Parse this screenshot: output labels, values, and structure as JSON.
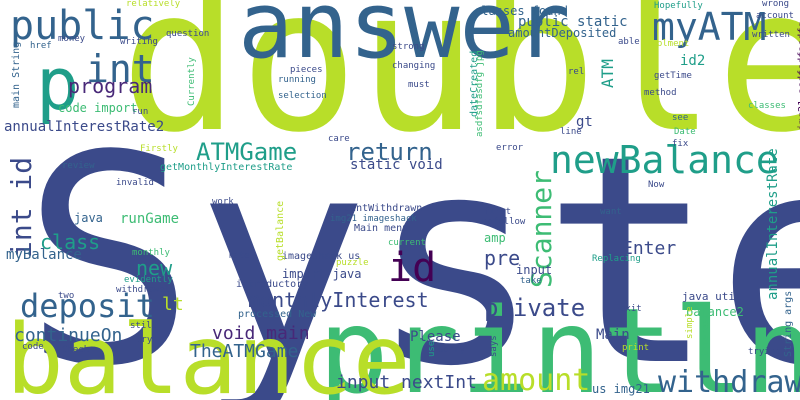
{
  "palette": {
    "navy": "#3b4a8a",
    "blue": "#33638d",
    "teal": "#1f9e89",
    "green": "#3dbc74",
    "lime": "#b8de29",
    "purple": "#482878",
    "dark": "#440154"
  },
  "words": [
    {
      "text": "System",
      "color": "navy"
    },
    {
      "text": "double",
      "color": "lime"
    },
    {
      "text": "println",
      "color": "green"
    },
    {
      "text": "balance",
      "color": "lime"
    },
    {
      "text": "answer",
      "color": "blue"
    },
    {
      "text": "p",
      "color": "teal"
    },
    {
      "text": "public",
      "color": "blue"
    },
    {
      "text": "int",
      "color": "blue"
    },
    {
      "text": "myATM",
      "color": "blue"
    },
    {
      "text": "newBalance",
      "color": "teal"
    },
    {
      "text": "id",
      "color": "dark"
    },
    {
      "text": "deposit",
      "color": "blue"
    },
    {
      "text": "withdraw",
      "color": "blue"
    },
    {
      "text": "amount",
      "color": "lime"
    },
    {
      "text": "program",
      "color": "purple"
    },
    {
      "text": "int id",
      "color": "navy"
    },
    {
      "text": "ATMGame",
      "color": "teal"
    },
    {
      "text": "return",
      "color": "blue"
    },
    {
      "text": "Scanner",
      "color": "green"
    },
    {
      "text": "monthlyInterest",
      "color": "navy"
    },
    {
      "text": "private",
      "color": "navy"
    },
    {
      "text": "class",
      "color": "teal"
    },
    {
      "text": "new",
      "color": "teal"
    },
    {
      "text": "pre",
      "color": "navy"
    },
    {
      "text": "Enter",
      "color": "navy"
    },
    {
      "text": "void main",
      "color": "purple"
    },
    {
      "text": "TheATMGame",
      "color": "blue"
    },
    {
      "text": "continueOn",
      "color": "blue"
    },
    {
      "text": "input nextInt",
      "color": "navy"
    },
    {
      "text": "annualInterestRate2",
      "color": "navy"
    },
    {
      "text": "static void",
      "color": "navy"
    },
    {
      "text": "runGame",
      "color": "green"
    },
    {
      "text": "myBalance",
      "color": "blue"
    },
    {
      "text": "lt",
      "color": "lime"
    },
    {
      "text": "public static",
      "color": "blue"
    },
    {
      "text": "classes found",
      "color": "blue"
    },
    {
      "text": "amountDeposited",
      "color": "blue"
    },
    {
      "text": "code import",
      "color": "green"
    },
    {
      "text": "getMonthlyInterestRate",
      "color": "teal"
    },
    {
      "text": "annualInterestRate",
      "color": "teal"
    },
    {
      "text": "Main",
      "color": "navy"
    },
    {
      "text": "Please",
      "color": "navy"
    },
    {
      "text": "import java",
      "color": "navy"
    },
    {
      "text": "java util",
      "color": "navy"
    },
    {
      "text": "balance2",
      "color": "green"
    },
    {
      "text": "id2",
      "color": "teal"
    },
    {
      "text": "gt",
      "color": "navy"
    },
    {
      "text": "input",
      "color": "navy"
    },
    {
      "text": "amp",
      "color": "green"
    },
    {
      "text": "ATM",
      "color": "teal"
    },
    {
      "text": "main String",
      "color": "blue"
    },
    {
      "text": "java",
      "color": "blue"
    },
    {
      "text": "String args",
      "color": "blue"
    },
    {
      "text": "us img21",
      "color": "blue"
    },
    {
      "text": "img21 asdfsdfasdfg",
      "color": "dark"
    },
    {
      "text": "asdfsdfasdfg jpg",
      "color": "green"
    },
    {
      "text": "dateCreated",
      "color": "teal"
    },
    {
      "text": "amountWithdrawn",
      "color": "navy"
    },
    {
      "text": "img21 imageshack",
      "color": "blue"
    },
    {
      "text": "imageshack us",
      "color": "navy"
    },
    {
      "text": "Main menu",
      "color": "navy"
    },
    {
      "text": "getBalance",
      "color": "lime"
    },
    {
      "text": "processed New",
      "color": "blue"
    },
    {
      "text": "introductory",
      "color": "navy"
    },
    {
      "text": "Currently",
      "color": "green"
    },
    {
      "text": "running",
      "color": "blue"
    },
    {
      "text": "selection",
      "color": "blue"
    },
    {
      "text": "pieces",
      "color": "navy"
    },
    {
      "text": "changing",
      "color": "navy"
    },
    {
      "text": "must",
      "color": "navy"
    },
    {
      "text": "strong",
      "color": "navy"
    },
    {
      "text": "method",
      "color": "navy"
    },
    {
      "text": "getTime",
      "color": "navy"
    },
    {
      "text": "rel",
      "color": "navy"
    },
    {
      "text": "Date",
      "color": "green"
    },
    {
      "text": "fix",
      "color": "navy"
    },
    {
      "text": "see",
      "color": "blue"
    },
    {
      "text": "classes",
      "color": "green"
    },
    {
      "text": "line",
      "color": "navy"
    },
    {
      "text": "error",
      "color": "navy"
    },
    {
      "text": "nofollow",
      "color": "navy"
    },
    {
      "text": "first",
      "color": "navy"
    },
    {
      "text": "want",
      "color": "blue"
    },
    {
      "text": "current",
      "color": "green"
    },
    {
      "text": "puzzle",
      "color": "lime"
    },
    {
      "text": "Replacing",
      "color": "teal"
    },
    {
      "text": "take",
      "color": "blue"
    },
    {
      "text": "exit",
      "color": "navy"
    },
    {
      "text": "says",
      "color": "navy"
    },
    {
      "text": "simple",
      "color": "lime"
    },
    {
      "text": "interest",
      "color": "green"
    },
    {
      "text": "print",
      "color": "lime"
    },
    {
      "text": "Sorry",
      "color": "navy"
    },
    {
      "text": "use",
      "color": "teal"
    },
    {
      "text": "trying",
      "color": "navy"
    },
    {
      "text": "account",
      "color": "navy"
    },
    {
      "text": "written",
      "color": "navy"
    },
    {
      "text": "wrong",
      "color": "navy"
    },
    {
      "text": "Hopefully",
      "color": "teal"
    },
    {
      "text": "implment",
      "color": "lime"
    },
    {
      "text": "able",
      "color": "navy"
    },
    {
      "text": "money",
      "color": "navy"
    },
    {
      "text": "writing",
      "color": "navy"
    },
    {
      "text": "href",
      "color": "blue"
    },
    {
      "text": "question",
      "color": "navy"
    },
    {
      "text": "relatively",
      "color": "lime"
    },
    {
      "text": "run",
      "color": "navy"
    },
    {
      "text": "Firstly",
      "color": "lime"
    },
    {
      "text": "review",
      "color": "blue"
    },
    {
      "text": "invalid",
      "color": "navy"
    },
    {
      "text": "work",
      "color": "navy"
    },
    {
      "text": "rate",
      "color": "navy"
    },
    {
      "text": "monthly",
      "color": "green"
    },
    {
      "text": "evidently",
      "color": "teal"
    },
    {
      "text": "withdrawel",
      "color": "navy"
    },
    {
      "text": "two",
      "color": "navy"
    },
    {
      "text": "still",
      "color": "navy"
    },
    {
      "text": "try",
      "color": "navy"
    },
    {
      "text": "care",
      "color": "navy"
    },
    {
      "text": "Check",
      "color": "navy"
    },
    {
      "text": "code",
      "color": "navy"
    },
    {
      "text": "Now",
      "color": "navy"
    }
  ]
}
